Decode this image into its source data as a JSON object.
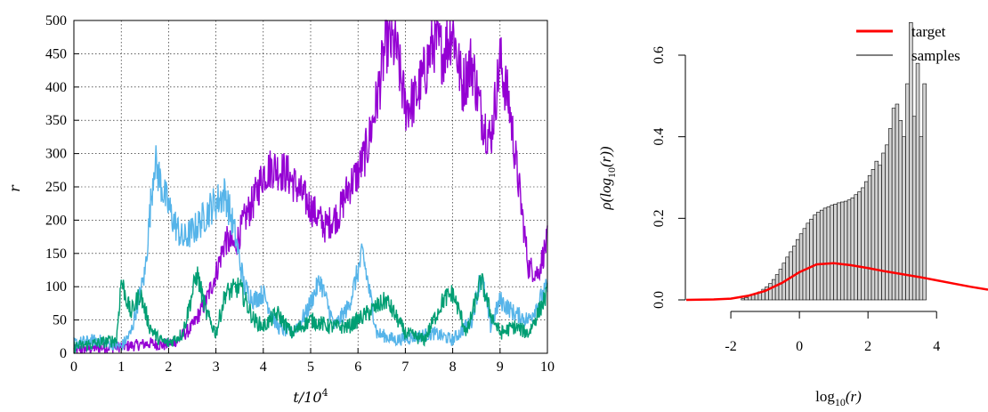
{
  "chart_data": [
    {
      "type": "line",
      "xlabel": "t/10^4",
      "xlabel_main": "t/10",
      "xlabel_sup": "4",
      "ylabel": "r",
      "xlim": [
        0,
        10
      ],
      "ylim": [
        0,
        500
      ],
      "grid": true,
      "x_ticks": [
        "0",
        "1",
        "2",
        "3",
        "4",
        "5",
        "6",
        "7",
        "8",
        "9",
        "10"
      ],
      "y_ticks": [
        "0",
        "50",
        "100",
        "150",
        "200",
        "250",
        "300",
        "350",
        "400",
        "450",
        "500"
      ],
      "series": [
        {
          "color": "#9400d3",
          "x": [
            0,
            0.5,
            1,
            1.3,
            1.6,
            1.9,
            2.2,
            2.5,
            2.8,
            3.0,
            3.2,
            3.4,
            3.6,
            3.8,
            4.0,
            4.2,
            4.5,
            4.8,
            5.0,
            5.3,
            5.6,
            5.8,
            6.0,
            6.2,
            6.4,
            6.6,
            6.8,
            7.0,
            7.2,
            7.4,
            7.6,
            7.8,
            8.0,
            8.2,
            8.4,
            8.6,
            8.8,
            9.0,
            9.2,
            9.4,
            9.6,
            9.8,
            10.0
          ],
          "y": [
            5,
            8,
            10,
            12,
            15,
            12,
            20,
            40,
            80,
            120,
            170,
            160,
            200,
            230,
            270,
            280,
            270,
            240,
            220,
            190,
            210,
            250,
            270,
            310,
            380,
            470,
            460,
            370,
            380,
            420,
            470,
            450,
            490,
            400,
            440,
            360,
            320,
            440,
            370,
            250,
            130,
            120,
            170
          ]
        },
        {
          "color": "#56b4e9",
          "x": [
            0,
            0.5,
            1,
            1.2,
            1.5,
            1.7,
            1.9,
            2.1,
            2.3,
            2.6,
            2.9,
            3.2,
            3.4,
            3.6,
            3.8,
            4.0,
            4.3,
            4.6,
            4.9,
            5.2,
            5.5,
            5.8,
            6.1,
            6.4,
            6.8,
            7.2,
            7.6,
            8.0,
            8.4,
            8.6,
            8.8,
            9.0,
            9.3,
            9.6,
            10.0
          ],
          "y": [
            15,
            20,
            10,
            30,
            120,
            290,
            240,
            200,
            170,
            190,
            220,
            240,
            180,
            100,
            80,
            90,
            40,
            30,
            60,
            110,
            40,
            70,
            150,
            30,
            20,
            25,
            30,
            20,
            50,
            120,
            40,
            80,
            60,
            50,
            100
          ]
        },
        {
          "color": "#009e73",
          "x": [
            0,
            0.5,
            0.9,
            1.0,
            1.2,
            1.4,
            1.6,
            1.8,
            2.0,
            2.3,
            2.6,
            2.8,
            3.0,
            3.2,
            3.5,
            3.8,
            4.0,
            4.3,
            4.6,
            5.0,
            5.4,
            5.8,
            6.2,
            6.6,
            7.0,
            7.4,
            7.8,
            8.0,
            8.3,
            8.6,
            8.8,
            9.0,
            9.3,
            9.6,
            10.0
          ],
          "y": [
            10,
            15,
            20,
            110,
            60,
            90,
            40,
            20,
            15,
            30,
            120,
            60,
            30,
            90,
            100,
            50,
            40,
            60,
            30,
            50,
            40,
            40,
            60,
            80,
            30,
            20,
            80,
            90,
            30,
            110,
            60,
            30,
            40,
            30,
            90
          ]
        }
      ]
    },
    {
      "type": "bar",
      "xlabel": "log_10(r)",
      "xlabel_main": "log",
      "xlabel_sub": "10",
      "xlabel_arg": "(r)",
      "ylabel": "ρ(log_10(r))",
      "ylabel_pre": "ρ(log",
      "ylabel_sub": "10",
      "ylabel_post": "(r))",
      "xlim": [
        -3.3,
        5.5
      ],
      "ylim": [
        0,
        0.72
      ],
      "x_ticks": [
        "-2",
        "0",
        "2",
        "4"
      ],
      "x_tick_values": [
        -2,
        0,
        2,
        4
      ],
      "y_ticks": [
        "0.0",
        "0.2",
        "0.4",
        "0.6"
      ],
      "y_tick_values": [
        0,
        0.2,
        0.4,
        0.6
      ],
      "legend_position": "top-right",
      "legend": [
        {
          "label": "target",
          "color": "#ff0000"
        },
        {
          "label": "samples",
          "color": "#000000"
        }
      ],
      "histogram": {
        "name": "samples",
        "bin_start": -1.7,
        "bin_width": 0.1,
        "values": [
          0.003,
          0.006,
          0.01,
          0.012,
          0.016,
          0.02,
          0.026,
          0.032,
          0.04,
          0.05,
          0.062,
          0.075,
          0.09,
          0.105,
          0.118,
          0.132,
          0.148,
          0.162,
          0.175,
          0.188,
          0.198,
          0.208,
          0.215,
          0.22,
          0.225,
          0.228,
          0.232,
          0.235,
          0.238,
          0.24,
          0.242,
          0.245,
          0.25,
          0.258,
          0.265,
          0.275,
          0.29,
          0.305,
          0.32,
          0.34,
          0.33,
          0.36,
          0.38,
          0.42,
          0.47,
          0.48,
          0.44,
          0.4,
          0.53,
          0.68,
          0.45,
          0.58,
          0.4,
          0.53
        ]
      },
      "density": {
        "name": "target",
        "color": "#ff0000",
        "x": [
          -3.3,
          -2.5,
          -2.0,
          -1.5,
          -1.0,
          -0.5,
          0.0,
          0.5,
          1.0,
          1.5,
          2.0,
          2.5,
          3.0,
          3.5,
          4.0,
          4.5,
          5.0,
          5.5
        ],
        "y": [
          0.0,
          0.001,
          0.003,
          0.01,
          0.022,
          0.042,
          0.068,
          0.087,
          0.09,
          0.085,
          0.078,
          0.07,
          0.063,
          0.056,
          0.048,
          0.04,
          0.032,
          0.025
        ]
      }
    }
  ]
}
